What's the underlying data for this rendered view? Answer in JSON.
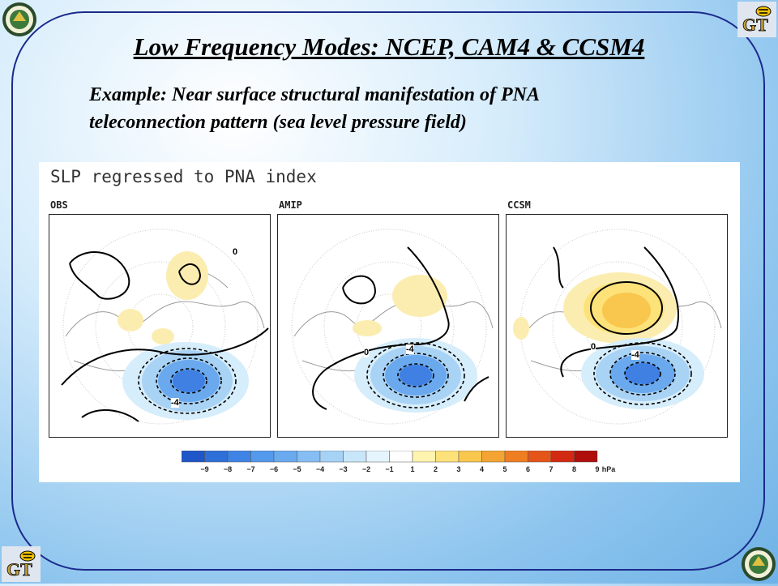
{
  "slide": {
    "title": "Low Frequency Modes: NCEP, CAM4 & CCSM4",
    "subtitle_line1": "Example:  Near surface structural manifestation of PNA",
    "subtitle_line2": "teleconnection pattern (sea level pressure field)"
  },
  "logos": {
    "top_left": "doe-seal-icon",
    "top_right": "gt-yellowjacket-icon",
    "bottom_left": "gt-yellowjacket-icon",
    "bottom_right": "doe-seal-icon"
  },
  "figure": {
    "title": "SLP regressed to PNA index",
    "panels": [
      {
        "label": "OBS",
        "contour_zero": "0",
        "contour_neg": "-4"
      },
      {
        "label": "AMIP",
        "contour_zero": "0",
        "contour_neg": "-4"
      },
      {
        "label": "CCSM",
        "contour_zero": "0",
        "contour_neg": "-4"
      }
    ],
    "colorbar": {
      "labels": [
        "-9",
        "-8",
        "-7",
        "-6",
        "-5",
        "-4",
        "-3",
        "-2",
        "-1",
        "1",
        "2",
        "3",
        "4",
        "5",
        "6",
        "7",
        "8",
        "9"
      ],
      "unit": "hPa",
      "colors": [
        "#1f56c8",
        "#2e6fd8",
        "#3f84e4",
        "#5399ec",
        "#6aaaef",
        "#86bdf2",
        "#a6d2f6",
        "#c8e6fa",
        "#e6f5fd",
        "#ffffff",
        "#fff3b0",
        "#fde27a",
        "#f9c64e",
        "#f4a432",
        "#ef7d22",
        "#e55418",
        "#d22a12",
        "#b00d0d"
      ]
    }
  }
}
